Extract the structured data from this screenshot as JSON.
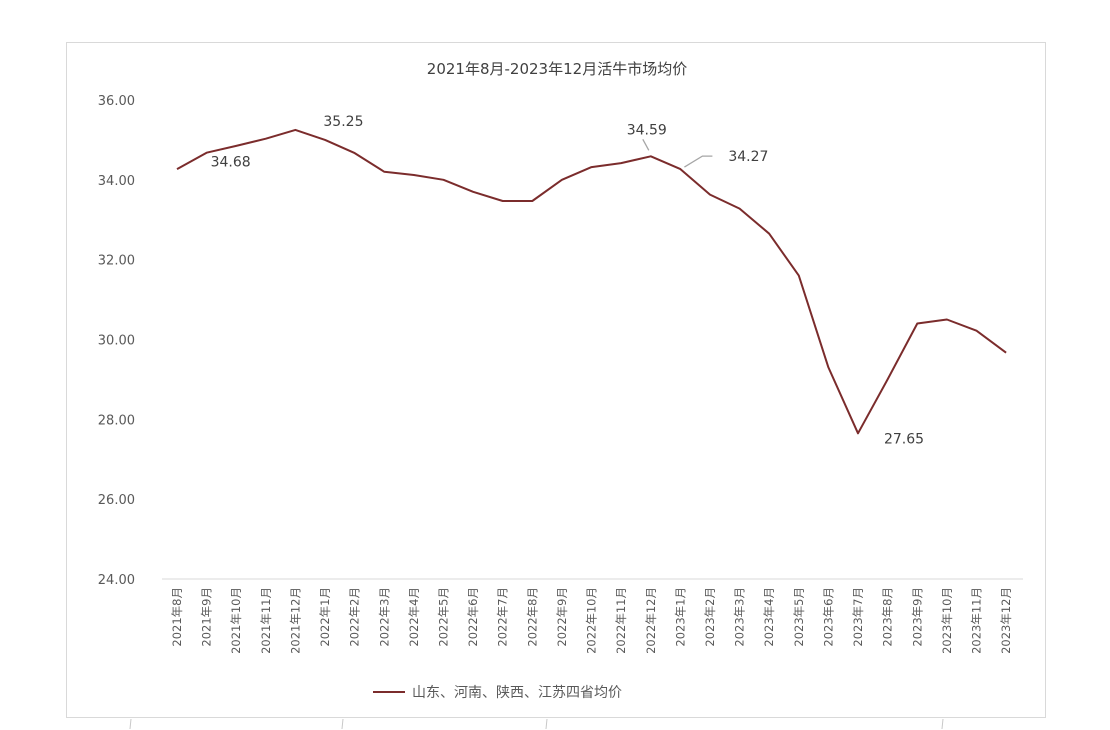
{
  "chart_data": {
    "type": "line",
    "title": "2021年8月-2023年12月活牛市场均价",
    "xlabel": "",
    "ylabel": "",
    "ylim": [
      24,
      36
    ],
    "yticks": [
      "24.00",
      "26.00",
      "28.00",
      "30.00",
      "32.00",
      "34.00",
      "36.00"
    ],
    "grid": false,
    "legend_position": "bottom",
    "categories": [
      "2021年8月",
      "2021年9月",
      "2021年10月",
      "2021年11月",
      "2021年12月",
      "2022年1月",
      "2022年2月",
      "2022年3月",
      "2022年4月",
      "2022年5月",
      "2022年6月",
      "2022年7月",
      "2022年8月",
      "2022年9月",
      "2022年10月",
      "2022年11月",
      "2022年12月",
      "2023年1月",
      "2023年2月",
      "2023年3月",
      "2023年4月",
      "2023年5月",
      "2023年6月",
      "2023年7月",
      "2023年8月",
      "2023年9月",
      "2023年10月",
      "2023年11月",
      "2023年12月"
    ],
    "series": [
      {
        "name": "山东、河南、陕西、江苏四省均价",
        "color": "#7b2c2c",
        "values": [
          34.27,
          34.68,
          34.85,
          35.03,
          35.25,
          35.0,
          34.67,
          34.2,
          34.12,
          34.0,
          33.7,
          33.47,
          33.47,
          34.0,
          34.32,
          34.42,
          34.59,
          34.27,
          33.63,
          33.28,
          32.65,
          31.6,
          29.3,
          27.65,
          29.0,
          30.4,
          30.5,
          30.22,
          29.67
        ]
      }
    ],
    "data_labels": [
      {
        "index": 1,
        "text": "34.68"
      },
      {
        "index": 4,
        "text": "35.25"
      },
      {
        "index": 16,
        "text": "34.59"
      },
      {
        "index": 17,
        "text": "34.27"
      },
      {
        "index": 23,
        "text": "27.65"
      }
    ]
  }
}
